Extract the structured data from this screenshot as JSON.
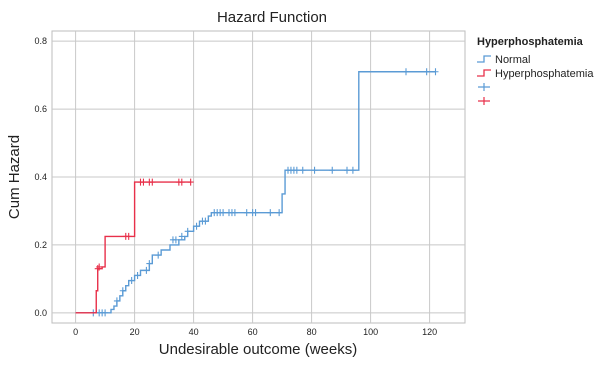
{
  "chart_data": {
    "type": "line",
    "title": "Hazard Function",
    "xlabel": "Undesirable outcome (weeks)",
    "ylabel": "Cum Hazard",
    "xlim": [
      -8,
      132
    ],
    "ylim": [
      -0.03,
      0.83
    ],
    "xticks": [
      0,
      20,
      40,
      60,
      80,
      100,
      120
    ],
    "yticks": [
      0.0,
      0.2,
      0.4,
      0.6,
      0.8
    ],
    "ytick_labels": [
      "0.0",
      "0.2",
      "0.4",
      "0.6",
      "0.8"
    ],
    "grid": true,
    "legend": {
      "title": "Hyperphosphatemia",
      "placement": "right",
      "entries": [
        {
          "label": "Normal",
          "kind": "line",
          "color": "#5b9bd5"
        },
        {
          "label": "Hyperphosphatemia",
          "kind": "line",
          "color": "#e8304a"
        },
        {
          "label": "",
          "kind": "censor",
          "color": "#5b9bd5"
        },
        {
          "label": "",
          "kind": "censor",
          "color": "#e8304a"
        }
      ]
    },
    "series": [
      {
        "name": "Normal",
        "color": "#5b9bd5",
        "steps": [
          [
            0,
            0.0
          ],
          [
            11,
            0.0
          ],
          [
            12,
            0.01
          ],
          [
            13,
            0.02
          ],
          [
            14,
            0.035
          ],
          [
            15,
            0.05
          ],
          [
            16,
            0.065
          ],
          [
            17,
            0.08
          ],
          [
            18,
            0.095
          ],
          [
            20,
            0.11
          ],
          [
            22,
            0.125
          ],
          [
            25,
            0.145
          ],
          [
            26,
            0.17
          ],
          [
            29,
            0.185
          ],
          [
            32,
            0.2
          ],
          [
            35,
            0.215
          ],
          [
            37,
            0.225
          ],
          [
            38,
            0.24
          ],
          [
            40,
            0.255
          ],
          [
            42,
            0.27
          ],
          [
            45,
            0.285
          ],
          [
            46,
            0.295
          ],
          [
            70,
            0.35
          ],
          [
            71,
            0.42
          ],
          [
            96,
            0.71
          ],
          [
            122,
            0.71
          ]
        ],
        "censored": [
          [
            6,
            0.0
          ],
          [
            8,
            0.0
          ],
          [
            9,
            0.0
          ],
          [
            10,
            0.0
          ],
          [
            14,
            0.035
          ],
          [
            16,
            0.065
          ],
          [
            19,
            0.095
          ],
          [
            21,
            0.11
          ],
          [
            24,
            0.125
          ],
          [
            25,
            0.145
          ],
          [
            28,
            0.17
          ],
          [
            33,
            0.215
          ],
          [
            34,
            0.215
          ],
          [
            36,
            0.225
          ],
          [
            38,
            0.24
          ],
          [
            41,
            0.255
          ],
          [
            43,
            0.27
          ],
          [
            44,
            0.27
          ],
          [
            47,
            0.295
          ],
          [
            48,
            0.295
          ],
          [
            49,
            0.295
          ],
          [
            50,
            0.295
          ],
          [
            52,
            0.295
          ],
          [
            53,
            0.295
          ],
          [
            54,
            0.295
          ],
          [
            58,
            0.295
          ],
          [
            60,
            0.295
          ],
          [
            61,
            0.295
          ],
          [
            66,
            0.295
          ],
          [
            69,
            0.295
          ],
          [
            72,
            0.42
          ],
          [
            73,
            0.42
          ],
          [
            74,
            0.42
          ],
          [
            75,
            0.42
          ],
          [
            77,
            0.42
          ],
          [
            81,
            0.42
          ],
          [
            87,
            0.42
          ],
          [
            92,
            0.42
          ],
          [
            94,
            0.42
          ],
          [
            112,
            0.71
          ],
          [
            119,
            0.71
          ],
          [
            122,
            0.71
          ]
        ]
      },
      {
        "name": "Hyperphosphatemia",
        "color": "#e8304a",
        "steps": [
          [
            0,
            0.0
          ],
          [
            6,
            0.0
          ],
          [
            7,
            0.065
          ],
          [
            7.5,
            0.13
          ],
          [
            9,
            0.135
          ],
          [
            10,
            0.225
          ],
          [
            19,
            0.225
          ],
          [
            20,
            0.385
          ],
          [
            39,
            0.385
          ]
        ],
        "censored": [
          [
            7.5,
            0.13
          ],
          [
            8,
            0.135
          ],
          [
            17,
            0.225
          ],
          [
            18,
            0.225
          ],
          [
            22,
            0.385
          ],
          [
            23,
            0.385
          ],
          [
            25,
            0.385
          ],
          [
            26,
            0.385
          ],
          [
            35,
            0.385
          ],
          [
            36,
            0.385
          ],
          [
            39,
            0.385
          ]
        ]
      }
    ]
  }
}
